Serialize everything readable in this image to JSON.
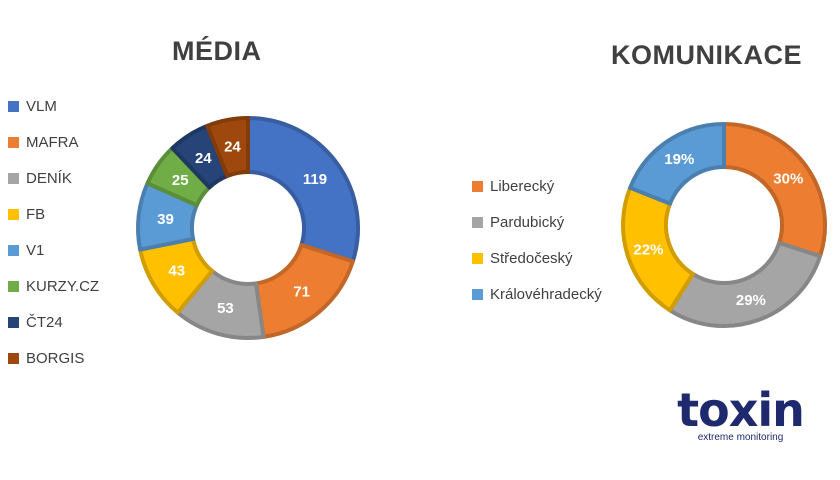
{
  "chart_data": [
    {
      "type": "donut",
      "title": "MÉDIA",
      "categories": [
        "VLM",
        "MAFRA",
        "DENÍK",
        "FB",
        "V1",
        "KURZY.CZ",
        "ČT24",
        "BORGIS"
      ],
      "values": [
        119,
        71,
        53,
        43,
        39,
        25,
        24,
        24
      ],
      "labels": [
        "119",
        "71",
        "53",
        "43",
        "39",
        "25",
        "24",
        "24"
      ],
      "colors": [
        "#4472c4",
        "#ed7d31",
        "#a5a5a5",
        "#ffc000",
        "#5b9bd5",
        "#70ad47",
        "#264478",
        "#9e480e"
      ],
      "legend_position": "left"
    },
    {
      "type": "donut",
      "title": "KOMUNIKACE",
      "categories": [
        "Liberecký",
        "Pardubický",
        "Středočeský",
        "Královéhradecký"
      ],
      "values": [
        30,
        29,
        22,
        19
      ],
      "labels": [
        "30%",
        "29%",
        "22%",
        "19%"
      ],
      "colors": [
        "#ed7d31",
        "#a5a5a5",
        "#ffc000",
        "#5b9bd5"
      ],
      "legend_position": "left"
    }
  ],
  "logo": {
    "word": "toxin",
    "tagline": "extreme monitoring"
  }
}
